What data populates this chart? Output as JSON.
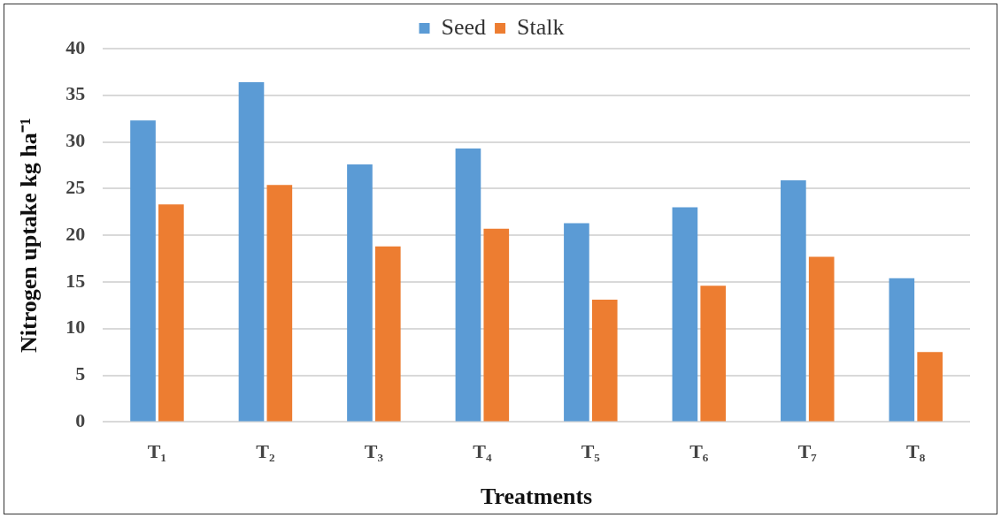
{
  "chart_data": {
    "type": "bar",
    "xlabel": "Treatments",
    "ylabel": "Nitrogen uptake kg ha⁻¹",
    "categories": [
      "T₁",
      "T₂",
      "T₃",
      "T₄",
      "T₅",
      "T₆",
      "T₇",
      "T₈"
    ],
    "series": [
      {
        "name": "Seed",
        "color": "#5b9bd5",
        "values": [
          32.3,
          36.4,
          27.6,
          29.3,
          21.3,
          23.0,
          25.9,
          15.4
        ]
      },
      {
        "name": "Stalk",
        "color": "#ed7d31",
        "values": [
          23.3,
          25.4,
          18.8,
          20.7,
          13.1,
          14.6,
          17.7,
          7.5
        ]
      }
    ],
    "ylim": [
      0,
      40
    ],
    "yticks": [
      0,
      5,
      10,
      15,
      20,
      25,
      30,
      35,
      40
    ],
    "grid": "y",
    "legend": "top"
  }
}
